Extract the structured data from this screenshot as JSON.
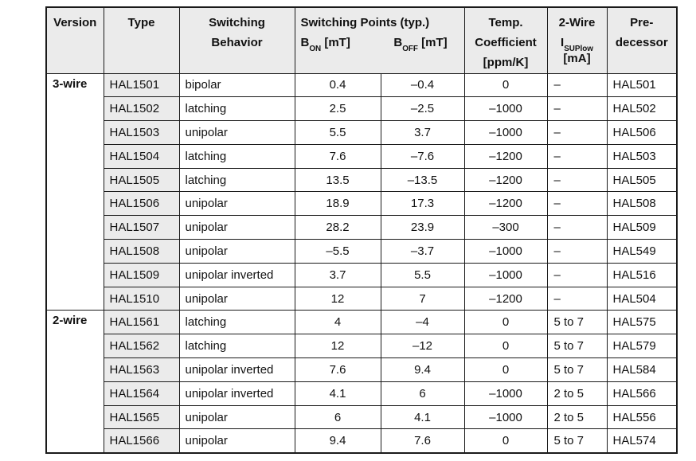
{
  "colors": {
    "header_bg": "#ebebeb",
    "border": "#1a1a1a",
    "text": "#111111"
  },
  "table": {
    "headers": {
      "version": "Version",
      "type": "Type",
      "behavior_line1": "Switching",
      "behavior_line2": "Behavior",
      "switching_points": "Switching Points (typ.)",
      "bon": {
        "base": "B",
        "sub": "ON",
        "unit": " [mT]"
      },
      "boff": {
        "base": "B",
        "sub": "OFF",
        "unit": " [mT]"
      },
      "temp_line1": "Temp.",
      "temp_line2": "Coefficient",
      "temp_line3": "[ppm/K]",
      "twowire_line1": "2-Wire",
      "twowire_current": {
        "base": "I",
        "sub": "SUPlow"
      },
      "twowire_line3": "[mA]",
      "pre_line1": "Pre-",
      "pre_line2": "decessor"
    },
    "groups": [
      {
        "version": "3-wire",
        "rows": [
          {
            "type": "HAL1501",
            "behavior": "bipolar",
            "bon": "0.4",
            "boff": "–0.4",
            "temp": "0",
            "isup": "–",
            "pre": "HAL501"
          },
          {
            "type": "HAL1502",
            "behavior": "latching",
            "bon": "2.5",
            "boff": "–2.5",
            "temp": "–1000",
            "isup": "–",
            "pre": "HAL502"
          },
          {
            "type": "HAL1503",
            "behavior": "unipolar",
            "bon": "5.5",
            "boff": "3.7",
            "temp": "–1000",
            "isup": "–",
            "pre": "HAL506"
          },
          {
            "type": "HAL1504",
            "behavior": "latching",
            "bon": "7.6",
            "boff": "–7.6",
            "temp": "–1200",
            "isup": "–",
            "pre": "HAL503"
          },
          {
            "type": "HAL1505",
            "behavior": "latching",
            "bon": "13.5",
            "boff": "–13.5",
            "temp": "–1200",
            "isup": "–",
            "pre": "HAL505"
          },
          {
            "type": "HAL1506",
            "behavior": "unipolar",
            "bon": "18.9",
            "boff": "17.3",
            "temp": "–1200",
            "isup": "–",
            "pre": "HAL508"
          },
          {
            "type": "HAL1507",
            "behavior": "unipolar",
            "bon": "28.2",
            "boff": "23.9",
            "temp": "–300",
            "isup": "–",
            "pre": "HAL509"
          },
          {
            "type": "HAL1508",
            "behavior": "unipolar",
            "bon": "–5.5",
            "boff": "–3.7",
            "temp": "–1000",
            "isup": "–",
            "pre": "HAL549"
          },
          {
            "type": "HAL1509",
            "behavior": "unipolar inverted",
            "bon": "3.7",
            "boff": "5.5",
            "temp": "–1000",
            "isup": "–",
            "pre": "HAL516"
          },
          {
            "type": "HAL1510",
            "behavior": "unipolar",
            "bon": "12",
            "boff": "7",
            "temp": "–1200",
            "isup": "–",
            "pre": "HAL504"
          }
        ]
      },
      {
        "version": "2-wire",
        "rows": [
          {
            "type": "HAL1561",
            "behavior": "latching",
            "bon": "4",
            "boff": "–4",
            "temp": "0",
            "isup": "5 to 7",
            "pre": "HAL575"
          },
          {
            "type": "HAL1562",
            "behavior": "latching",
            "bon": "12",
            "boff": "–12",
            "temp": "0",
            "isup": "5 to 7",
            "pre": "HAL579"
          },
          {
            "type": "HAL1563",
            "behavior": "unipolar inverted",
            "bon": "7.6",
            "boff": "9.4",
            "temp": "0",
            "isup": "5 to 7",
            "pre": "HAL584"
          },
          {
            "type": "HAL1564",
            "behavior": "unipolar inverted",
            "bon": "4.1",
            "boff": "6",
            "temp": "–1000",
            "isup": "2 to 5",
            "pre": "HAL566"
          },
          {
            "type": "HAL1565",
            "behavior": "unipolar",
            "bon": "6",
            "boff": "4.1",
            "temp": "–1000",
            "isup": "2 to 5",
            "pre": "HAL556"
          },
          {
            "type": "HAL1566",
            "behavior": "unipolar",
            "bon": "9.4",
            "boff": "7.6",
            "temp": "0",
            "isup": "5 to 7",
            "pre": "HAL574"
          }
        ]
      }
    ]
  }
}
